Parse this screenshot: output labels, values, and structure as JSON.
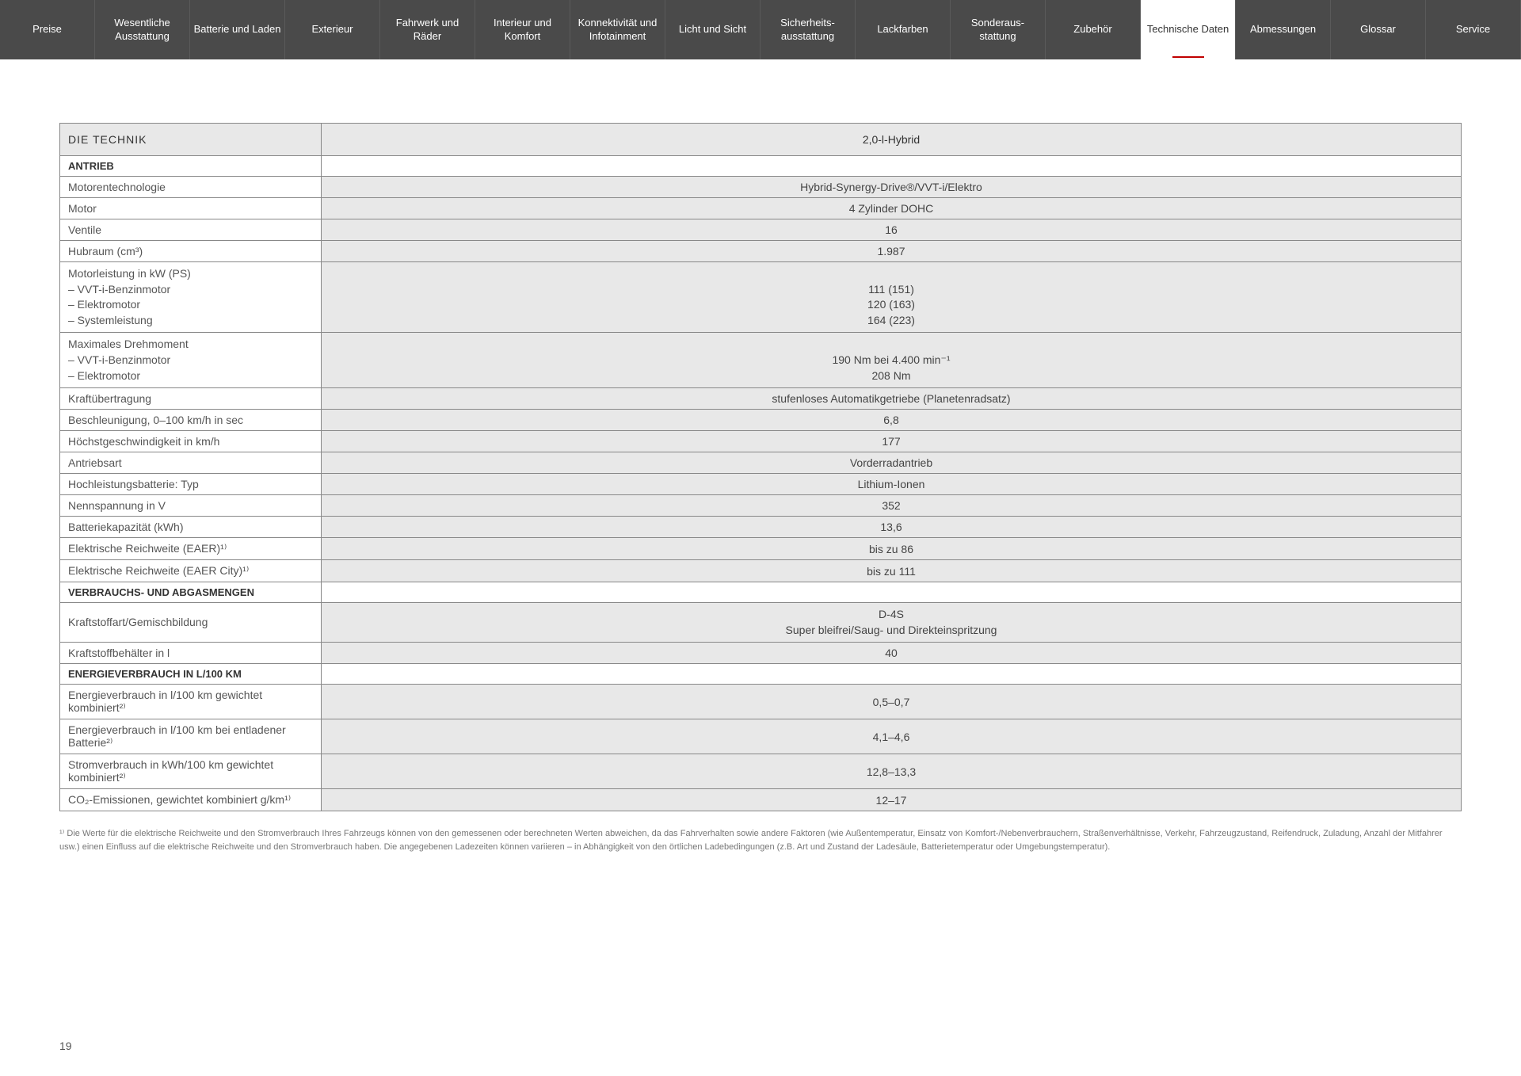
{
  "nav": {
    "items": [
      "Preise",
      "Wesentliche Ausstattung",
      "Batterie und Laden",
      "Exterieur",
      "Fahrwerk und Räder",
      "Interieur und Komfort",
      "Konnektivität und Infotainment",
      "Licht und Sicht",
      "Sicherheits-ausstattung",
      "Lackfarben",
      "Sonderaus-stattung",
      "Zubehör",
      "Technische Daten",
      "Abmessungen",
      "Glossar",
      "Service"
    ],
    "active_index": 12
  },
  "table": {
    "title": "DIE TECHNIK",
    "variant": "2,0-l-Hybrid",
    "sections": [
      {
        "header": "ANTRIEB",
        "rows": [
          {
            "label": "Motorentechnologie",
            "value": "Hybrid-Synergy-Drive®/VVT-i/Elektro"
          },
          {
            "label": "Motor",
            "value": "4 Zylinder DOHC"
          },
          {
            "label": "Ventile",
            "value": "16"
          },
          {
            "label": "Hubraum (cm³)",
            "value": "1.987"
          },
          {
            "label": "Motorleistung in kW (PS)\n– VVT-i-Benzinmotor\n– Elektromotor\n– Systemleistung",
            "value": "\n111 (151)\n120 (163)\n164 (223)",
            "multiline": true
          },
          {
            "label": "Maximales Drehmoment\n– VVT-i-Benzinmotor\n– Elektromotor",
            "value": "\n190 Nm bei 4.400 min⁻¹\n208 Nm",
            "multiline": true
          },
          {
            "label": "Kraftübertragung",
            "value": "stufenloses Automatikgetriebe (Planetenradsatz)"
          },
          {
            "label": "Beschleunigung, 0–100 km/h in sec",
            "value": "6,8"
          },
          {
            "label": "Höchstgeschwindigkeit in km/h",
            "value": "177"
          },
          {
            "label": "Antriebsart",
            "value": "Vorderradantrieb"
          },
          {
            "label": "Hochleistungsbatterie: Typ",
            "value": "Lithium-Ionen"
          },
          {
            "label": "Nennspannung in V",
            "value": "352"
          },
          {
            "label": "Batteriekapazität (kWh)",
            "value": "13,6"
          },
          {
            "label": "Elektrische Reichweite (EAER)¹⁾",
            "value": "bis zu 86"
          },
          {
            "label": "Elektrische Reichweite (EAER City)¹⁾",
            "value": "bis zu 111"
          }
        ]
      },
      {
        "header": "VERBRAUCHS- UND ABGASMENGEN",
        "rows": [
          {
            "label": "Kraftstoffart/Gemischbildung",
            "value": "D-4S\nSuper bleifrei/Saug- und Direkteinspritzung",
            "multiline": true
          },
          {
            "label": "Kraftstoffbehälter in l",
            "value": "40"
          }
        ]
      },
      {
        "header": "ENERGIEVERBRAUCH IN L/100 KM",
        "rows": [
          {
            "label": "Energieverbrauch in l/100 km gewichtet kombiniert²⁾",
            "value": "0,5–0,7"
          },
          {
            "label": "Energieverbrauch in l/100 km bei entladener Batterie²⁾",
            "value": "4,1–4,6"
          },
          {
            "label": "Stromverbrauch in kWh/100 km gewichtet kombiniert²⁾",
            "value": "12,8–13,3"
          },
          {
            "label": "CO₂-Emissionen, gewichtet kombiniert g/km¹⁾",
            "value": "12–17"
          }
        ]
      }
    ]
  },
  "footnote": "¹⁾ Die Werte für die elektrische Reichweite und den Stromverbrauch Ihres Fahrzeugs können von den gemessenen oder berechneten Werten abweichen, da das Fahrverhalten sowie andere Faktoren (wie Außentemperatur, Einsatz von Komfort-/Nebenverbrauchern, Straßenverhältnisse, Verkehr, Fahrzeugzustand, Reifendruck, Zuladung, Anzahl der Mitfahrer usw.) einen Einfluss auf die elektrische Reichweite und den Stromverbrauch haben. Die angegebenen Ladezeiten können variieren – in Abhängigkeit von den örtlichen Ladebedingungen (z.B. Art und Zustand der Ladesäule, Batterietemperatur oder Umgebungstemperatur).",
  "page_number": "19",
  "colors": {
    "nav_bg": "#4a4a4a",
    "nav_text": "#ffffff",
    "active_underline": "#c00000",
    "table_border": "#888888",
    "value_bg": "#e8e8e8",
    "label_bg": "#ffffff"
  }
}
